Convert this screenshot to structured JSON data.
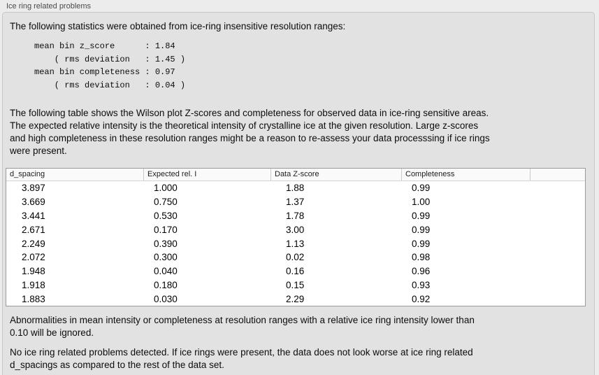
{
  "panel": {
    "title": "Ice ring related problems"
  },
  "intro_text": "The following statistics were obtained from ice-ring insensitive resolution ranges:",
  "stats_lines": [
    "mean bin z_score      : 1.84",
    "    ( rms deviation   : 1.45 )",
    "mean bin completeness : 0.97",
    "    ( rms deviation   : 0.04 )"
  ],
  "description_lines": [
    "The following table shows the Wilson plot Z-scores and completeness for observed data in ice-ring sensitive areas.",
    "The expected relative intensity is the theoretical intensity of crystalline ice at the given resolution. Large z-scores",
    "and high completeness in these resolution ranges might be a reason to re-assess your data processsing if ice rings",
    "were present."
  ],
  "table": {
    "columns": [
      "d_spacing",
      "Expected rel. I",
      "Data Z-score",
      "Completeness"
    ],
    "rows": [
      [
        "3.897",
        "1.000",
        "1.88",
        "0.99"
      ],
      [
        "3.669",
        "0.750",
        "1.37",
        "1.00"
      ],
      [
        "3.441",
        "0.530",
        "1.78",
        "0.99"
      ],
      [
        "2.671",
        "0.170",
        "3.00",
        "0.99"
      ],
      [
        "2.249",
        "0.390",
        "1.13",
        "0.99"
      ],
      [
        "2.072",
        "0.300",
        "0.02",
        "0.98"
      ],
      [
        "1.948",
        "0.040",
        "0.16",
        "0.96"
      ],
      [
        "1.918",
        "0.180",
        "0.15",
        "0.93"
      ],
      [
        "1.883",
        "0.030",
        "2.29",
        "0.92"
      ]
    ]
  },
  "ignore_note_lines": [
    "Abnormalities in mean intensity or completeness at resolution ranges with a relative ice ring intensity lower than",
    "0.10 will be ignored."
  ],
  "conclusion_lines": [
    "No ice ring related problems detected. If ice rings were present, the data does not look worse at ice ring related",
    "d_spacings as compared to the rest of the data set."
  ],
  "colors": {
    "outer_bg": "#ececec",
    "panel_bg": "#e2e2e2",
    "table_border": "#9a9a9a",
    "header_bg": "#fafafa"
  }
}
